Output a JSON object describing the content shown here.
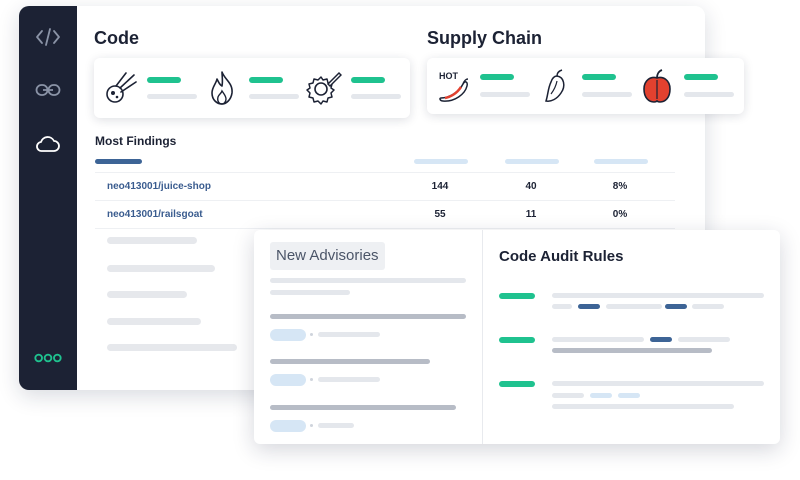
{
  "sections": {
    "code": {
      "title": "Code"
    },
    "supply_chain": {
      "title": "Supply Chain"
    }
  },
  "findings": {
    "title": "Most Findings",
    "rows": [
      {
        "repo": "neo413001/juice-shop",
        "col1": "144",
        "col2": "40",
        "col3": "8%"
      },
      {
        "repo": "neo413001/railsgoat",
        "col1": "55",
        "col2": "11",
        "col3": "0%"
      }
    ]
  },
  "panel": {
    "advisories_label": "New Advisories",
    "rules_title": "Code Audit Rules"
  },
  "icons": {
    "sidebar": [
      "code-icon",
      "link-icon",
      "cloud-icon",
      "logo-icon"
    ],
    "code_cards": [
      "comet-icon",
      "flame-icon",
      "gear-pencil-icon"
    ],
    "supply_cards": [
      "hot-pepper-icon",
      "chili-icon",
      "bell-pepper-icon"
    ]
  },
  "colors": {
    "sidebar": "#1c2234",
    "accent_green": "#1fc28f",
    "link_blue": "#3a5c8f"
  }
}
